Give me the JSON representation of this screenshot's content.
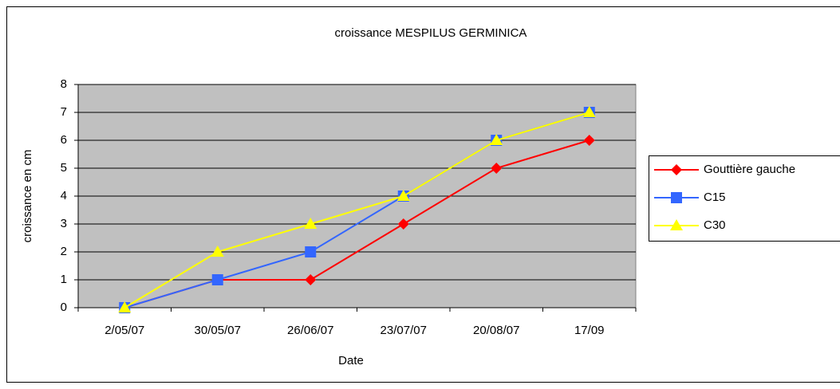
{
  "chart_data": {
    "type": "line",
    "title": "croissance MESPILUS GERMINICA",
    "x_label": "Date",
    "y_label": "croissance en cm",
    "categories": [
      "2/05/07",
      "30/05/07",
      "26/06/07",
      "23/07/07",
      "20/08/07",
      "17/09"
    ],
    "series": [
      {
        "name": "Gouttière gauche",
        "color": "#ff0000",
        "marker": "diamond",
        "values": [
          0,
          1,
          1,
          3,
          5,
          6
        ]
      },
      {
        "name": "C15",
        "color": "#3366ff",
        "marker": "square",
        "values": [
          0,
          1,
          2,
          4,
          6,
          7
        ]
      },
      {
        "name": "C30",
        "color": "#ffff00",
        "marker": "triangle",
        "values": [
          0,
          2,
          3,
          4,
          6,
          7
        ]
      }
    ],
    "ylim": [
      0,
      8
    ],
    "yticks": [
      0,
      1,
      2,
      3,
      4,
      5,
      6,
      7,
      8
    ],
    "grid": true,
    "legend": "right",
    "plot_background": "#c0c0c0"
  }
}
